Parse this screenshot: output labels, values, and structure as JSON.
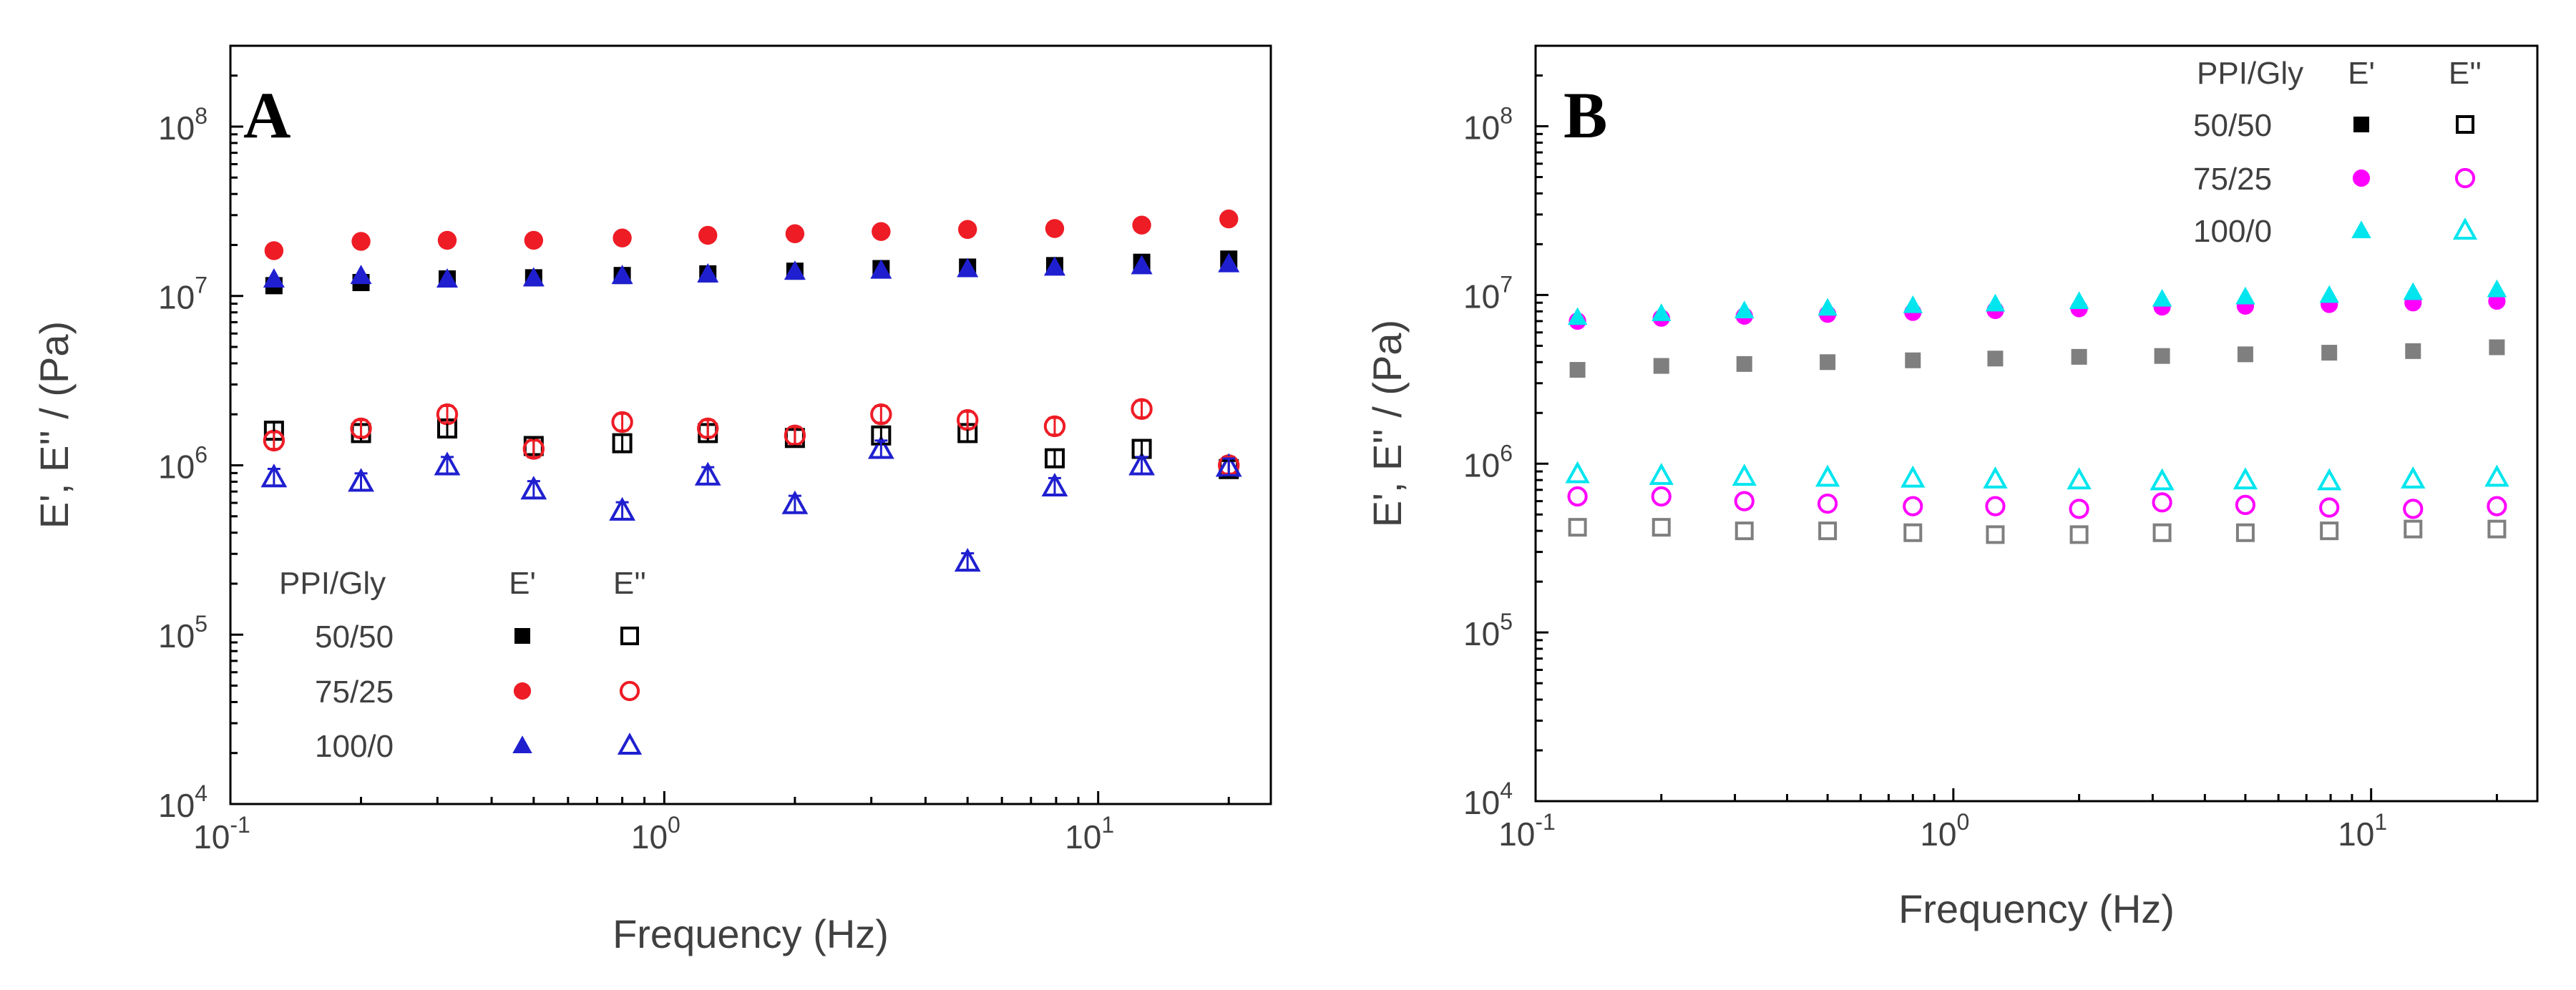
{
  "chart_data": [
    {
      "type": "scatter",
      "panel_label": "A",
      "xlabel": "Frequency (Hz)",
      "ylabel": "E', E'' / (Pa)",
      "xscale": "log",
      "yscale": "log",
      "xlim": [
        0.1,
        25
      ],
      "ylim": [
        10000,
        300000000
      ],
      "x_ticks": [
        {
          "base": "10",
          "exp": "-1"
        },
        {
          "base": "10",
          "exp": "0"
        },
        {
          "base": "10",
          "exp": "1"
        }
      ],
      "y_ticks": [
        {
          "base": "10",
          "exp": "4"
        },
        {
          "base": "10",
          "exp": "5"
        },
        {
          "base": "10",
          "exp": "6"
        },
        {
          "base": "10",
          "exp": "7"
        },
        {
          "base": "10",
          "exp": "8"
        }
      ],
      "legend": {
        "placement": "bottom-left",
        "header": [
          "PPI/Gly",
          "E'",
          "E''"
        ],
        "rows": [
          "50/50",
          "75/25",
          "100/0"
        ]
      },
      "series": [
        {
          "name": "50/50 E'",
          "group": "50/50",
          "modulus": "E'",
          "marker": "square",
          "filled": true,
          "color": "#000000",
          "x": [
            0.126,
            0.2,
            0.316,
            0.5,
            0.8,
            1.26,
            2.0,
            3.16,
            5.0,
            7.94,
            12.6,
            20.0
          ],
          "y": [
            11500000,
            12000000,
            12600000,
            12800000,
            13200000,
            13500000,
            14000000,
            14500000,
            14800000,
            15100000,
            15800000,
            16500000
          ]
        },
        {
          "name": "75/25 E'",
          "group": "75/25",
          "modulus": "E'",
          "marker": "circle",
          "filled": true,
          "color": "#ee1c25",
          "x": [
            0.126,
            0.2,
            0.316,
            0.5,
            0.8,
            1.26,
            2.0,
            3.16,
            5.0,
            7.94,
            12.6,
            20.0
          ],
          "y": [
            18500000,
            21000000,
            21300000,
            21300000,
            22000000,
            22800000,
            23300000,
            24000000,
            24700000,
            25000000,
            26200000,
            28500000
          ]
        },
        {
          "name": "100/0 E'",
          "group": "100/0",
          "modulus": "E'",
          "marker": "triangle",
          "filled": true,
          "color": "#1f1fd0",
          "x": [
            0.126,
            0.2,
            0.316,
            0.5,
            0.8,
            1.26,
            2.0,
            3.16,
            5.0,
            7.94,
            12.6,
            20.0
          ],
          "y": [
            12600000,
            13200000,
            12600000,
            12800000,
            13200000,
            13500000,
            14000000,
            14200000,
            14500000,
            14800000,
            15100000,
            15500000
          ]
        },
        {
          "name": "50/50 E''",
          "group": "50/50",
          "modulus": "E''",
          "marker": "square",
          "filled": false,
          "color": "#000000",
          "x": [
            0.126,
            0.2,
            0.316,
            0.5,
            0.8,
            1.26,
            2.0,
            3.16,
            5.0,
            7.94,
            12.6,
            20.0
          ],
          "y": [
            1600000,
            1550000,
            1650000,
            1300000,
            1350000,
            1550000,
            1450000,
            1500000,
            1550000,
            1100000,
            1250000,
            950000
          ]
        },
        {
          "name": "75/25 E''",
          "group": "75/25",
          "modulus": "E''",
          "marker": "circle",
          "filled": false,
          "color": "#ee1c25",
          "x": [
            0.126,
            0.2,
            0.316,
            0.5,
            0.8,
            1.26,
            2.0,
            3.16,
            5.0,
            7.94,
            12.6,
            20.0
          ],
          "y": [
            1400000,
            1650000,
            2000000,
            1250000,
            1800000,
            1650000,
            1500000,
            2000000,
            1850000,
            1700000,
            2150000,
            1000000
          ]
        },
        {
          "name": "100/0 E''",
          "group": "100/0",
          "modulus": "E''",
          "marker": "triangle",
          "filled": false,
          "color": "#1f1fd0",
          "x": [
            0.126,
            0.2,
            0.316,
            0.5,
            0.8,
            1.26,
            2.0,
            3.16,
            5.0,
            7.94,
            12.6,
            20.0
          ],
          "y": [
            850000,
            800000,
            1000000,
            720000,
            540000,
            870000,
            590000,
            1250000,
            270000,
            750000,
            1000000,
            980000
          ]
        }
      ]
    },
    {
      "type": "scatter",
      "panel_label": "B",
      "xlabel": "Frequency (Hz)",
      "ylabel": "E', E'' / (Pa)",
      "xscale": "log",
      "yscale": "log",
      "xlim": [
        0.1,
        25
      ],
      "ylim": [
        10000,
        300000000
      ],
      "x_ticks": [
        {
          "base": "10",
          "exp": "-1"
        },
        {
          "base": "10",
          "exp": "0"
        },
        {
          "base": "10",
          "exp": "1"
        }
      ],
      "y_ticks": [
        {
          "base": "10",
          "exp": "4"
        },
        {
          "base": "10",
          "exp": "5"
        },
        {
          "base": "10",
          "exp": "6"
        },
        {
          "base": "10",
          "exp": "7"
        },
        {
          "base": "10",
          "exp": "8"
        }
      ],
      "legend": {
        "placement": "top-right",
        "header": [
          "PPI/Gly",
          "E'",
          "E''"
        ],
        "rows": [
          "50/50",
          "75/25",
          "100/0"
        ]
      },
      "series": [
        {
          "name": "50/50 E'",
          "group": "50/50",
          "modulus": "E'",
          "marker": "square",
          "filled": true,
          "color": "#7f7f7f",
          "legend_color": "#000000",
          "x": [
            0.126,
            0.2,
            0.316,
            0.5,
            0.8,
            1.26,
            2.0,
            3.16,
            5.0,
            7.94,
            12.6,
            20.0
          ],
          "y": [
            3600000,
            3800000,
            3900000,
            4000000,
            4100000,
            4200000,
            4300000,
            4350000,
            4450000,
            4550000,
            4650000,
            4900000
          ]
        },
        {
          "name": "75/25 E'",
          "group": "75/25",
          "modulus": "E'",
          "marker": "circle",
          "filled": true,
          "color": "#ff00ff",
          "x": [
            0.126,
            0.2,
            0.316,
            0.5,
            0.8,
            1.26,
            2.0,
            3.16,
            5.0,
            7.94,
            12.6,
            20.0
          ],
          "y": [
            7000000,
            7300000,
            7500000,
            7700000,
            7900000,
            8100000,
            8300000,
            8500000,
            8600000,
            8800000,
            9000000,
            9200000
          ]
        },
        {
          "name": "100/0 E'",
          "group": "100/0",
          "modulus": "E'",
          "marker": "triangle",
          "filled": true,
          "color": "#00e5ee",
          "x": [
            0.126,
            0.2,
            0.316,
            0.5,
            0.8,
            1.26,
            2.0,
            3.16,
            5.0,
            7.94,
            12.6,
            20.0
          ],
          "y": [
            7400000,
            7800000,
            8100000,
            8400000,
            8700000,
            8900000,
            9200000,
            9500000,
            9800000,
            10000000,
            10400000,
            10800000
          ]
        },
        {
          "name": "50/50 E''",
          "group": "50/50",
          "modulus": "E''",
          "marker": "square",
          "filled": false,
          "color": "#7f7f7f",
          "legend_color": "#000000",
          "x": [
            0.126,
            0.2,
            0.316,
            0.5,
            0.8,
            1.26,
            2.0,
            3.16,
            5.0,
            7.94,
            12.6,
            20.0
          ],
          "y": [
            420000,
            420000,
            400000,
            400000,
            390000,
            380000,
            380000,
            390000,
            390000,
            400000,
            410000,
            410000
          ]
        },
        {
          "name": "75/25 E''",
          "group": "75/25",
          "modulus": "E''",
          "marker": "circle",
          "filled": false,
          "color": "#ff00ff",
          "x": [
            0.126,
            0.2,
            0.316,
            0.5,
            0.8,
            1.26,
            2.0,
            3.16,
            5.0,
            7.94,
            12.6,
            20.0
          ],
          "y": [
            640000,
            640000,
            600000,
            580000,
            560000,
            560000,
            540000,
            590000,
            570000,
            550000,
            540000,
            560000
          ]
        },
        {
          "name": "100/0 E''",
          "group": "100/0",
          "modulus": "E''",
          "marker": "triangle",
          "filled": false,
          "color": "#00e5ee",
          "x": [
            0.126,
            0.2,
            0.316,
            0.5,
            0.8,
            1.26,
            2.0,
            3.16,
            5.0,
            7.94,
            12.6,
            20.0
          ],
          "y": [
            870000,
            850000,
            840000,
            830000,
            820000,
            810000,
            800000,
            790000,
            800000,
            790000,
            810000,
            830000
          ]
        }
      ]
    }
  ]
}
